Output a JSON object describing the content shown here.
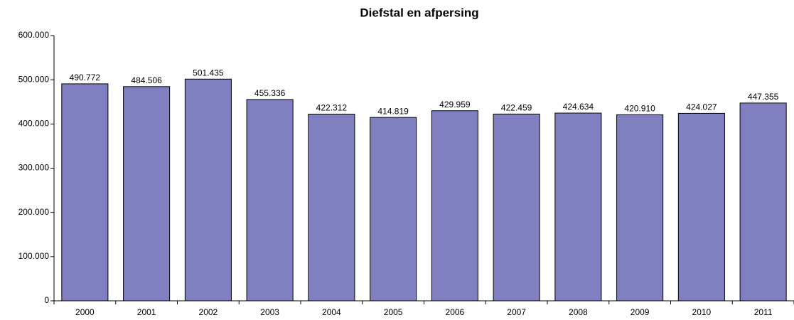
{
  "chart_data": {
    "type": "bar",
    "title": "Diefstal en afpersing",
    "categories": [
      "2000",
      "2001",
      "2002",
      "2003",
      "2004",
      "2005",
      "2006",
      "2007",
      "2008",
      "2009",
      "2010",
      "2011"
    ],
    "values": [
      490772,
      484506,
      501435,
      455336,
      422312,
      414819,
      429959,
      422459,
      424634,
      420910,
      424027,
      447355
    ],
    "value_labels": [
      "490.772",
      "484.506",
      "501.435",
      "455.336",
      "422.312",
      "414.819",
      "429.959",
      "422.459",
      "424.634",
      "420.910",
      "424.027",
      "447.355"
    ],
    "color": "#8080c0",
    "ylim": [
      0,
      600000
    ],
    "yticks": [
      0,
      {
        "value": 100000,
        "label": "100.000"
      },
      {
        "value": 200000,
        "label": "200.000"
      },
      {
        "value": 300000,
        "label": "300.000"
      },
      {
        "value": 400000,
        "label": "400.000"
      },
      {
        "value": 500000,
        "label": "500.000"
      },
      {
        "value": 600000,
        "label": "600.000"
      }
    ],
    "grid": false
  }
}
